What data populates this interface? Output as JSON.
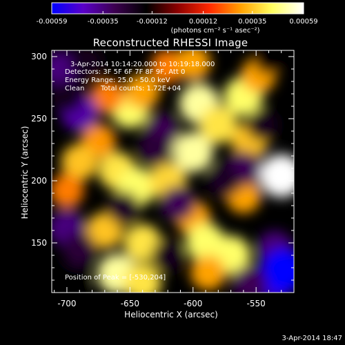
{
  "colorbar": {
    "tick_labels": [
      "-0.00059",
      "-0.00035",
      "-0.00012",
      "0.00012",
      "0.00035",
      "0.00059"
    ],
    "tick_values": [
      -0.00059,
      -0.00035,
      -0.00012,
      0.00012,
      0.00035,
      0.00059
    ],
    "range": [
      -0.00059,
      0.00059
    ],
    "unit_label": "(photons cm⁻² s⁻¹ asec⁻²)",
    "colors": [
      "#0000ff",
      "#5a00c8",
      "#3c0050",
      "#000000",
      "#8c0000",
      "#ff2800",
      "#ffa000",
      "#ffff60",
      "#ffffff"
    ]
  },
  "annotations": {
    "time_range": "3-Apr-2014 10:14:20.000 to 10:19:18.000",
    "detectors": "Detectors: 3F 5F 6F 7F 8F 9F, Att 0",
    "energy_range": "Energy Range: 25.0 - 50.0 keV",
    "algorithm": "Clean",
    "total_counts": "Total counts: 1.72E+04",
    "peak_position": "Position of Peak = [-530,204]"
  },
  "footer": {
    "timestamp": "3-Apr-2014 18:47"
  },
  "chart_data": {
    "type": "heatmap",
    "title": "Reconstructed RHESSI Image",
    "xlabel": "Heliocentric X (arcsec)",
    "ylabel": "Heliocentric Y (arcsec)",
    "xlim": [
      -712,
      -520
    ],
    "ylim": [
      110,
      305
    ],
    "x_ticks": [
      -700,
      -650,
      -600,
      -550
    ],
    "x_tick_labels": [
      "-700",
      "-650",
      "-600",
      "-550"
    ],
    "y_ticks": [
      150,
      200,
      250,
      300
    ],
    "y_tick_labels": [
      "150",
      "200",
      "250",
      "300"
    ],
    "value_range": [
      -0.00059,
      0.00059
    ],
    "peak": [
      -530,
      204
    ],
    "grid": false,
    "blobs": [
      {
        "x": -650,
        "y": 258,
        "v": 0.00045
      },
      {
        "x": -640,
        "y": 272,
        "v": 0.0003
      },
      {
        "x": -668,
        "y": 268,
        "v": 0.00025
      },
      {
        "x": -675,
        "y": 232,
        "v": 0.00028
      },
      {
        "x": -690,
        "y": 215,
        "v": 0.00035
      },
      {
        "x": -700,
        "y": 192,
        "v": 0.00025
      },
      {
        "x": -660,
        "y": 208,
        "v": 0.0004
      },
      {
        "x": -645,
        "y": 195,
        "v": 0.00045
      },
      {
        "x": -620,
        "y": 200,
        "v": 0.00038
      },
      {
        "x": -600,
        "y": 223,
        "v": 0.0005
      },
      {
        "x": -595,
        "y": 262,
        "v": 0.0005
      },
      {
        "x": -580,
        "y": 245,
        "v": 0.0004
      },
      {
        "x": -560,
        "y": 268,
        "v": 0.00045
      },
      {
        "x": -548,
        "y": 285,
        "v": 0.0003
      },
      {
        "x": -555,
        "y": 232,
        "v": 0.00035
      },
      {
        "x": -530,
        "y": 204,
        "v": 0.00059
      },
      {
        "x": -560,
        "y": 188,
        "v": 0.0003
      },
      {
        "x": -600,
        "y": 170,
        "v": 0.0003
      },
      {
        "x": -590,
        "y": 150,
        "v": 0.00045
      },
      {
        "x": -570,
        "y": 140,
        "v": 0.00045
      },
      {
        "x": -588,
        "y": 126,
        "v": 0.0003
      },
      {
        "x": -640,
        "y": 150,
        "v": 0.0004
      },
      {
        "x": -670,
        "y": 160,
        "v": 0.00035
      },
      {
        "x": -660,
        "y": 125,
        "v": 0.0005
      },
      {
        "x": -640,
        "y": 118,
        "v": 0.0004
      },
      {
        "x": -620,
        "y": 292,
        "v": 0.00025
      },
      {
        "x": -600,
        "y": 295,
        "v": 0.0003
      },
      {
        "x": -690,
        "y": 255,
        "v": -0.0004
      },
      {
        "x": -705,
        "y": 290,
        "v": -0.00035
      },
      {
        "x": -700,
        "y": 268,
        "v": -0.0002
      },
      {
        "x": -685,
        "y": 295,
        "v": -0.0002
      },
      {
        "x": -625,
        "y": 240,
        "v": -0.0003
      },
      {
        "x": -630,
        "y": 225,
        "v": -0.00025
      },
      {
        "x": -612,
        "y": 182,
        "v": -0.0003
      },
      {
        "x": -655,
        "y": 178,
        "v": -0.00022
      },
      {
        "x": -700,
        "y": 162,
        "v": -0.00035
      },
      {
        "x": -690,
        "y": 145,
        "v": -0.00025
      },
      {
        "x": -560,
        "y": 210,
        "v": -0.0003
      },
      {
        "x": -575,
        "y": 200,
        "v": -0.00022
      },
      {
        "x": -545,
        "y": 245,
        "v": -0.0002
      },
      {
        "x": -535,
        "y": 145,
        "v": -0.00035
      },
      {
        "x": -535,
        "y": 120,
        "v": -0.0005
      },
      {
        "x": -528,
        "y": 128,
        "v": -0.00059
      },
      {
        "x": -555,
        "y": 118,
        "v": -0.0003
      },
      {
        "x": -620,
        "y": 140,
        "v": -0.0002
      },
      {
        "x": -695,
        "y": 120,
        "v": -0.00015
      },
      {
        "x": -540,
        "y": 298,
        "v": -0.00015
      }
    ]
  }
}
